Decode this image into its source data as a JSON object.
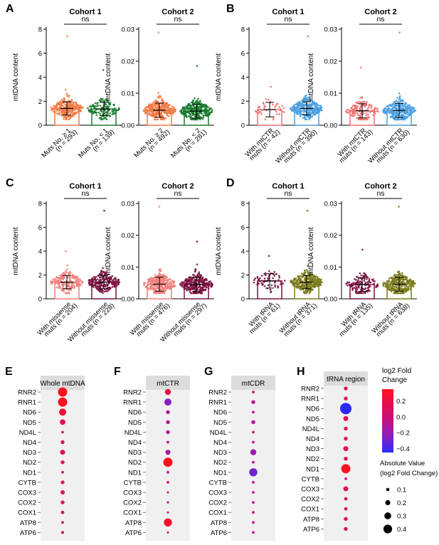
{
  "panels_top": [
    {
      "letter": "A",
      "title": "Cohort 1",
      "ns": "ns",
      "ylabel": "mtDNA content",
      "ylim": [
        0,
        8
      ],
      "ticks": [
        0,
        2,
        4,
        6,
        8
      ],
      "tick_labels": [
        "0",
        "2",
        "4",
        "6",
        "8"
      ],
      "groups": [
        {
          "label1": "Muts No. ≥ 1",
          "label2": "(n = 293)",
          "color": "#f47a45",
          "n": 293,
          "mean": 1.4,
          "sd": 0.55,
          "max": 7.4
        },
        {
          "label1": "Muts No. < 1",
          "label2": "(n = 139)",
          "color": "#1a7a2e",
          "n": 139,
          "mean": 1.35,
          "sd": 0.55,
          "max": 4.6
        }
      ]
    },
    {
      "letter": "",
      "title": "Cohort 2",
      "ns": "ns",
      "ylabel": "mtDNA content",
      "ylim": [
        0,
        0.03
      ],
      "ticks": [
        0,
        0.01,
        0.02,
        0.03
      ],
      "tick_labels": [
        "0.00",
        "0.01",
        "0.02",
        "0.03"
      ],
      "groups": [
        {
          "label1": "Muts No. ≥ 2",
          "label2": "(n = 492)",
          "color": "#f47a45",
          "n": 492,
          "mean": 0.0047,
          "sd": 0.0022,
          "max": 0.029
        },
        {
          "label1": "Muts No. < 2",
          "label2": "(n = 281)",
          "color": "#1a7a2e",
          "n": 281,
          "mean": 0.0044,
          "sd": 0.0022,
          "max": 0.0185
        }
      ]
    },
    {
      "letter": "B",
      "title": "Cohort 1",
      "ns": "ns",
      "ylabel": "mtDNA content",
      "ylim": [
        0,
        8
      ],
      "ticks": [
        0,
        2,
        4,
        6,
        8
      ],
      "tick_labels": [
        "0",
        "2",
        "4",
        "6",
        "8"
      ],
      "groups": [
        {
          "label1": "With mtCTR",
          "label2": "muts (n = 42)",
          "color": "#f07070",
          "n": 42,
          "mean": 1.3,
          "sd": 0.6,
          "max": 3.2
        },
        {
          "label1": "Without mtCTR",
          "label2": "muts (n = 390)",
          "color": "#4a9fe0",
          "n": 390,
          "mean": 1.4,
          "sd": 0.55,
          "max": 7.4
        }
      ]
    },
    {
      "letter": "",
      "title": "Cohort 2",
      "ns": "ns",
      "ylabel": "mtDNA content",
      "ylim": [
        0,
        0.03
      ],
      "ticks": [
        0,
        0.01,
        0.02,
        0.03
      ],
      "tick_labels": [
        "0.00",
        "0.01",
        "0.02",
        "0.03"
      ],
      "groups": [
        {
          "label1": "With mtCTR",
          "label2": "muts (n = 143)",
          "color": "#f07070",
          "n": 143,
          "mean": 0.0045,
          "sd": 0.0022,
          "max": 0.018
        },
        {
          "label1": "Without mtCTR",
          "label2": "muts (n = 630)",
          "color": "#4a9fe0",
          "n": 630,
          "mean": 0.0046,
          "sd": 0.0022,
          "max": 0.029
        }
      ]
    }
  ],
  "panels_mid": [
    {
      "letter": "C",
      "title": "Cohort 1",
      "ns": "ns",
      "ylabel": "mtDNA content",
      "ylim": [
        0,
        8
      ],
      "ticks": [
        0,
        2,
        4,
        6,
        8
      ],
      "tick_labels": [
        "0",
        "2",
        "4",
        "6",
        "8"
      ],
      "groups": [
        {
          "label1": "With missense",
          "label2": "muts (n = 204)",
          "color": "#f27f7c",
          "n": 204,
          "mean": 1.4,
          "sd": 0.55,
          "max": 4.0
        },
        {
          "label1": "Without missense",
          "label2": "muts (n = 228)",
          "color": "#7a1040",
          "n": 228,
          "mean": 1.4,
          "sd": 0.55,
          "max": 7.4
        }
      ]
    },
    {
      "letter": "",
      "title": "Cohort 2",
      "ns": "ns",
      "ylabel": "mtDNA content",
      "ylim": [
        0,
        0.03
      ],
      "ticks": [
        0,
        0.01,
        0.02,
        0.03
      ],
      "tick_labels": [
        "0.00",
        "0.01",
        "0.02",
        "0.03"
      ],
      "groups": [
        {
          "label1": "With missense",
          "label2": "muts (n = 476)",
          "color": "#f27f7c",
          "n": 476,
          "mean": 0.0046,
          "sd": 0.0022,
          "max": 0.029
        },
        {
          "label1": "Without missense",
          "label2": "muts (n = 297)",
          "color": "#7a1040",
          "n": 297,
          "mean": 0.0045,
          "sd": 0.0022,
          "max": 0.018
        }
      ]
    },
    {
      "letter": "D",
      "title": "Cohort 1",
      "ns": "ns",
      "ylabel": "mtDNA content",
      "ylim": [
        0,
        8
      ],
      "ticks": [
        0,
        2,
        4,
        6,
        8
      ],
      "tick_labels": [
        "0",
        "2",
        "4",
        "6",
        "8"
      ],
      "groups": [
        {
          "label1": "With tRNA",
          "label2": "muts (n = 61)",
          "color": "#7a1040",
          "n": 61,
          "mean": 1.5,
          "sd": 0.6,
          "max": 3.6
        },
        {
          "label1": "Without tRNA",
          "label2": "muts (n = 371)",
          "color": "#7a7a1c",
          "n": 371,
          "mean": 1.4,
          "sd": 0.55,
          "max": 7.4
        }
      ]
    },
    {
      "letter": "",
      "title": "Cohort 2",
      "ns": "ns",
      "ylabel": "mtDNA content",
      "ylim": [
        0,
        0.03
      ],
      "ticks": [
        0,
        0.01,
        0.02,
        0.03
      ],
      "tick_labels": [
        "0.00",
        "0.01",
        "0.02",
        "0.03"
      ],
      "groups": [
        {
          "label1": "With tRNA",
          "label2": "muts (n = 135)",
          "color": "#7a1040",
          "n": 135,
          "mean": 0.0045,
          "sd": 0.0022,
          "max": 0.0155
        },
        {
          "label1": "Without tRNA",
          "label2": "muts (n = 638)",
          "color": "#7a7a1c",
          "n": 638,
          "mean": 0.0046,
          "sd": 0.0022,
          "max": 0.029
        }
      ]
    }
  ],
  "genes": [
    "RNR2",
    "RNR1",
    "ND6",
    "ND5",
    "ND4L",
    "ND4",
    "ND3",
    "ND2",
    "ND1",
    "CYTB",
    "COX3",
    "COX2",
    "COX1",
    "ATP8",
    "ATP6"
  ],
  "dot_panels": [
    {
      "letter": "E",
      "title": "Whole mtDNA",
      "values": [
        0.35,
        0.35,
        0.25,
        0.18,
        0.04,
        0.1,
        0.15,
        0.1,
        -0.05,
        0.1,
        0.12,
        0.1,
        0.08,
        0.05,
        0.06
      ]
    },
    {
      "letter": "F",
      "title": "mtCTR",
      "values": [
        0.2,
        -0.25,
        -0.1,
        -0.1,
        -0.1,
        -0.05,
        -0.15,
        0.35,
        -0.05,
        0.05,
        0.02,
        0.03,
        0.02,
        0.3,
        0.02
      ]
    },
    {
      "letter": "G",
      "title": "mtCDR",
      "values": [
        -0.05,
        -0.1,
        -0.05,
        -0.1,
        -0.05,
        -0.05,
        -0.2,
        -0.05,
        -0.3,
        -0.05,
        -0.05,
        -0.05,
        -0.05,
        -0.05,
        -0.05
      ]
    },
    {
      "letter": "H",
      "title": "tRNA region",
      "values": [
        0.1,
        0.1,
        -0.45,
        0.15,
        0.1,
        0.1,
        0.15,
        0.1,
        0.35,
        0.05,
        0.15,
        0.08,
        0.08,
        0.1,
        0.1
      ]
    }
  ],
  "legend": {
    "color_title_1": "log2 Fold",
    "color_title_2": "Change",
    "color_ticks": [
      0.2,
      0.0,
      -0.2,
      -0.4
    ],
    "color_tick_labels": [
      "0.2",
      "0.0",
      "−0.2",
      "−0.4"
    ],
    "color_range": [
      -0.45,
      0.35
    ],
    "size_title_1": "Absolute Value",
    "size_title_2": "(log2 Fold Change)",
    "size_values": [
      0.1,
      0.2,
      0.3,
      0.4
    ],
    "size_labels": [
      "0.1",
      "0.2",
      "0.3",
      "0.4"
    ]
  },
  "chart_data": [
    {
      "type": "scatter",
      "subtype": "dot-bar (mean ± SD)",
      "panel": "A",
      "title": "Cohort 1",
      "ylabel": "mtDNA content",
      "ylim": [
        0,
        8
      ],
      "categories": [
        "Muts No. ≥ 1 (n = 293)",
        "Muts No. < 1 (n = 139)"
      ],
      "means": [
        1.4,
        1.35
      ],
      "annotation": "ns"
    },
    {
      "type": "scatter",
      "subtype": "dot-bar (mean ± SD)",
      "panel": "A",
      "title": "Cohort 2",
      "ylabel": "mtDNA content",
      "ylim": [
        0,
        0.03
      ],
      "categories": [
        "Muts No. ≥ 2 (n = 492)",
        "Muts No. < 2 (n = 281)"
      ],
      "means": [
        0.0047,
        0.0044
      ],
      "annotation": "ns"
    },
    {
      "type": "scatter",
      "subtype": "dot-bar (mean ± SD)",
      "panel": "B",
      "title": "Cohort 1",
      "ylabel": "mtDNA content",
      "ylim": [
        0,
        8
      ],
      "categories": [
        "With mtCTR muts (n = 42)",
        "Without mtCTR muts (n = 390)"
      ],
      "means": [
        1.3,
        1.4
      ],
      "annotation": "ns"
    },
    {
      "type": "scatter",
      "subtype": "dot-bar (mean ± SD)",
      "panel": "B",
      "title": "Cohort 2",
      "ylabel": "mtDNA content",
      "ylim": [
        0,
        0.03
      ],
      "categories": [
        "With mtCTR muts (n = 143)",
        "Without mtCTR muts (n = 630)"
      ],
      "means": [
        0.0045,
        0.0046
      ],
      "annotation": "ns"
    },
    {
      "type": "scatter",
      "subtype": "dot-bar (mean ± SD)",
      "panel": "C",
      "title": "Cohort 1",
      "ylabel": "mtDNA content",
      "ylim": [
        0,
        8
      ],
      "categories": [
        "With missense muts (n = 204)",
        "Without missense muts (n = 228)"
      ],
      "means": [
        1.4,
        1.4
      ],
      "annotation": "ns"
    },
    {
      "type": "scatter",
      "subtype": "dot-bar (mean ± SD)",
      "panel": "C",
      "title": "Cohort 2",
      "ylabel": "mtDNA content",
      "ylim": [
        0,
        0.03
      ],
      "categories": [
        "With missense muts (n = 476)",
        "Without missense muts (n = 297)"
      ],
      "means": [
        0.0046,
        0.0045
      ],
      "annotation": "ns"
    },
    {
      "type": "scatter",
      "subtype": "dot-bar (mean ± SD)",
      "panel": "D",
      "title": "Cohort 1",
      "ylabel": "mtDNA content",
      "ylim": [
        0,
        8
      ],
      "categories": [
        "With tRNA muts (n = 61)",
        "Without tRNA muts (n = 371)"
      ],
      "means": [
        1.5,
        1.4
      ],
      "annotation": "ns"
    },
    {
      "type": "scatter",
      "subtype": "dot-bar (mean ± SD)",
      "panel": "D",
      "title": "Cohort 2",
      "ylabel": "mtDNA content",
      "ylim": [
        0,
        0.03
      ],
      "categories": [
        "With tRNA muts (n = 135)",
        "Without tRNA muts (n = 638)"
      ],
      "means": [
        0.0045,
        0.0046
      ],
      "annotation": "ns"
    },
    {
      "type": "scatter",
      "subtype": "dot plot",
      "panels": [
        "E",
        "F",
        "G",
        "H"
      ],
      "titles": [
        "Whole mtDNA",
        "mtCTR",
        "mtCDR",
        "tRNA region"
      ],
      "categories": [
        "RNR2",
        "RNR1",
        "ND6",
        "ND5",
        "ND4L",
        "ND4",
        "ND3",
        "ND2",
        "ND1",
        "CYTB",
        "COX3",
        "COX2",
        "COX1",
        "ATP8",
        "ATP6"
      ],
      "color_label": "log2 Fold Change",
      "size_label": "Absolute Value (log2 Fold Change)"
    }
  ]
}
